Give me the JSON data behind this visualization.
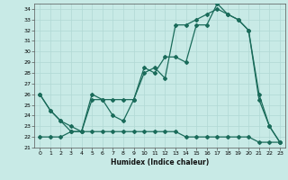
{
  "bg_color": "#c8eae6",
  "grid_color": "#b0d8d4",
  "line_color": "#1a6b5a",
  "marker": "D",
  "markersize": 2,
  "linewidth": 0.9,
  "xlabel": "Humidex (Indice chaleur)",
  "ylim": [
    21,
    34.5
  ],
  "xlim": [
    -0.5,
    23.5
  ],
  "yticks": [
    21,
    22,
    23,
    24,
    25,
    26,
    27,
    28,
    29,
    30,
    31,
    32,
    33,
    34
  ],
  "xticks": [
    0,
    1,
    2,
    3,
    4,
    5,
    6,
    7,
    8,
    9,
    10,
    11,
    12,
    13,
    14,
    15,
    16,
    17,
    18,
    19,
    20,
    21,
    22,
    23
  ],
  "series1_x": [
    0,
    1,
    2,
    3,
    4,
    5,
    6,
    7,
    8,
    9,
    10,
    11,
    12,
    13,
    14,
    15,
    16,
    17,
    18,
    19,
    20,
    21,
    22,
    23
  ],
  "series1_y": [
    26.0,
    24.5,
    23.5,
    23.0,
    22.5,
    25.5,
    25.5,
    24.0,
    23.5,
    25.5,
    28.0,
    28.5,
    27.5,
    32.5,
    32.5,
    33.0,
    33.5,
    34.0,
    33.5,
    33.0,
    32.0,
    25.5,
    23.0,
    21.5
  ],
  "series2_x": [
    0,
    1,
    2,
    3,
    4,
    5,
    6,
    7,
    8,
    9,
    10,
    11,
    12,
    13,
    14,
    15,
    16,
    17,
    18,
    19,
    20,
    21,
    22,
    23
  ],
  "series2_y": [
    26.0,
    24.5,
    23.5,
    22.5,
    22.5,
    26.0,
    25.5,
    25.5,
    25.5,
    25.5,
    28.5,
    28.0,
    29.5,
    29.5,
    29.0,
    32.5,
    32.5,
    34.5,
    33.5,
    33.0,
    32.0,
    26.0,
    23.0,
    21.5
  ],
  "series3_x": [
    0,
    1,
    2,
    3,
    4,
    5,
    6,
    7,
    8,
    9,
    10,
    11,
    12,
    13,
    14,
    15,
    16,
    17,
    18,
    19,
    20,
    21,
    22,
    23
  ],
  "series3_y": [
    22.0,
    22.0,
    22.0,
    22.5,
    22.5,
    22.5,
    22.5,
    22.5,
    22.5,
    22.5,
    22.5,
    22.5,
    22.5,
    22.5,
    22.0,
    22.0,
    22.0,
    22.0,
    22.0,
    22.0,
    22.0,
    21.5,
    21.5,
    21.5
  ]
}
